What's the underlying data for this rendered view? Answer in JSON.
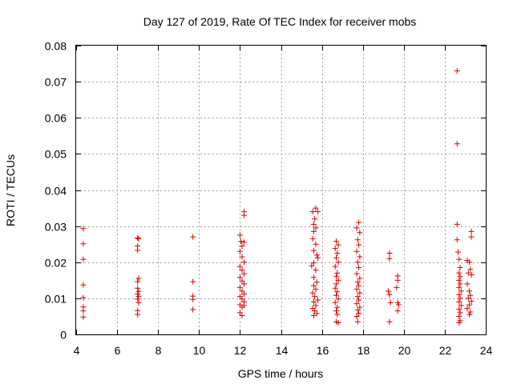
{
  "chart_data": {
    "type": "scatter",
    "title": "Day 127 of 2019, Rate Of TEC Index for receiver mobs",
    "xlabel": "GPS time / hours",
    "ylabel": "ROTI / TECUs",
    "xlim": [
      4,
      24
    ],
    "ylim": [
      0,
      0.08
    ],
    "grid": true,
    "marker": "+",
    "color": "#dd0000",
    "x_ticks": [
      "4",
      "6",
      "8",
      "10",
      "12",
      "14",
      "16",
      "18",
      "20",
      "22",
      "24"
    ],
    "y_ticks": [
      "0",
      "0.01",
      "0.02",
      "0.03",
      "0.04",
      "0.05",
      "0.06",
      "0.07",
      "0.08"
    ],
    "points": [
      [
        4.35,
        0.0293
      ],
      [
        4.35,
        0.0251
      ],
      [
        4.35,
        0.0208
      ],
      [
        4.35,
        0.0137
      ],
      [
        4.35,
        0.0102
      ],
      [
        4.35,
        0.0076
      ],
      [
        4.35,
        0.0065
      ],
      [
        4.35,
        0.0048
      ],
      [
        7.0,
        0.0267
      ],
      [
        7.05,
        0.0265
      ],
      [
        7.0,
        0.0245
      ],
      [
        7.0,
        0.0233
      ],
      [
        7.05,
        0.0155
      ],
      [
        7.0,
        0.0146
      ],
      [
        7.0,
        0.0128
      ],
      [
        7.05,
        0.0119
      ],
      [
        7.0,
        0.0112
      ],
      [
        7.05,
        0.0105
      ],
      [
        7.0,
        0.0098
      ],
      [
        7.05,
        0.0088
      ],
      [
        7.0,
        0.0066
      ],
      [
        7.0,
        0.0055
      ],
      [
        9.7,
        0.027
      ],
      [
        9.7,
        0.0146
      ],
      [
        9.7,
        0.0106
      ],
      [
        9.7,
        0.0097
      ],
      [
        9.7,
        0.0069
      ],
      [
        12.0,
        0.0275
      ],
      [
        12.05,
        0.0258
      ],
      [
        12.2,
        0.034
      ],
      [
        12.2,
        0.033
      ],
      [
        12.1,
        0.0245
      ],
      [
        12.2,
        0.0255
      ],
      [
        12.0,
        0.023
      ],
      [
        12.1,
        0.0215
      ],
      [
        12.2,
        0.02
      ],
      [
        12.0,
        0.0188
      ],
      [
        12.1,
        0.0178
      ],
      [
        12.2,
        0.0168
      ],
      [
        12.0,
        0.0158
      ],
      [
        12.1,
        0.0148
      ],
      [
        12.2,
        0.014
      ],
      [
        12.0,
        0.013
      ],
      [
        12.1,
        0.012
      ],
      [
        12.2,
        0.0112
      ],
      [
        12.0,
        0.0105
      ],
      [
        12.1,
        0.0098
      ],
      [
        12.2,
        0.009
      ],
      [
        12.0,
        0.0082
      ],
      [
        12.1,
        0.0075
      ],
      [
        12.0,
        0.006
      ],
      [
        12.1,
        0.0052
      ],
      [
        12.2,
        0.008
      ],
      [
        15.55,
        0.034
      ],
      [
        15.7,
        0.035
      ],
      [
        15.8,
        0.034
      ],
      [
        15.65,
        0.032
      ],
      [
        15.6,
        0.0305
      ],
      [
        15.7,
        0.0295
      ],
      [
        15.6,
        0.0285
      ],
      [
        15.55,
        0.0265
      ],
      [
        15.7,
        0.025
      ],
      [
        15.6,
        0.0232
      ],
      [
        15.75,
        0.022
      ],
      [
        15.8,
        0.0212
      ],
      [
        15.6,
        0.0198
      ],
      [
        15.5,
        0.019
      ],
      [
        15.7,
        0.0178
      ],
      [
        15.6,
        0.0158
      ],
      [
        15.75,
        0.0145
      ],
      [
        15.6,
        0.0135
      ],
      [
        15.7,
        0.0125
      ],
      [
        15.55,
        0.0115
      ],
      [
        15.65,
        0.0105
      ],
      [
        15.8,
        0.0095
      ],
      [
        15.6,
        0.009
      ],
      [
        15.7,
        0.008
      ],
      [
        15.55,
        0.0072
      ],
      [
        15.65,
        0.0065
      ],
      [
        15.75,
        0.0058
      ],
      [
        15.6,
        0.0052
      ],
      [
        16.7,
        0.0258
      ],
      [
        16.8,
        0.0248
      ],
      [
        16.65,
        0.0238
      ],
      [
        16.75,
        0.0225
      ],
      [
        16.7,
        0.0212
      ],
      [
        16.8,
        0.02
      ],
      [
        16.65,
        0.0188
      ],
      [
        16.75,
        0.017
      ],
      [
        16.7,
        0.016
      ],
      [
        16.8,
        0.015
      ],
      [
        16.7,
        0.014
      ],
      [
        16.65,
        0.0128
      ],
      [
        16.75,
        0.0118
      ],
      [
        16.7,
        0.0108
      ],
      [
        16.8,
        0.0098
      ],
      [
        16.65,
        0.0088
      ],
      [
        16.75,
        0.0075
      ],
      [
        16.7,
        0.0065
      ],
      [
        16.75,
        0.0055
      ],
      [
        16.7,
        0.0035
      ],
      [
        16.8,
        0.0032
      ],
      [
        17.8,
        0.031
      ],
      [
        17.7,
        0.0295
      ],
      [
        17.85,
        0.0282
      ],
      [
        17.75,
        0.0262
      ],
      [
        17.8,
        0.0248
      ],
      [
        17.7,
        0.023
      ],
      [
        17.85,
        0.0215
      ],
      [
        17.75,
        0.02
      ],
      [
        17.8,
        0.0185
      ],
      [
        17.7,
        0.0168
      ],
      [
        17.85,
        0.0155
      ],
      [
        17.75,
        0.0145
      ],
      [
        17.8,
        0.0135
      ],
      [
        17.7,
        0.0125
      ],
      [
        17.85,
        0.0115
      ],
      [
        17.75,
        0.0105
      ],
      [
        17.8,
        0.0095
      ],
      [
        17.7,
        0.0085
      ],
      [
        17.85,
        0.0075
      ],
      [
        17.75,
        0.0068
      ],
      [
        17.8,
        0.0058
      ],
      [
        17.7,
        0.005
      ],
      [
        17.75,
        0.0035
      ],
      [
        19.3,
        0.0225
      ],
      [
        19.3,
        0.021
      ],
      [
        19.25,
        0.012
      ],
      [
        19.3,
        0.011
      ],
      [
        19.35,
        0.0088
      ],
      [
        19.3,
        0.0035
      ],
      [
        19.7,
        0.0162
      ],
      [
        19.7,
        0.015
      ],
      [
        19.65,
        0.013
      ],
      [
        19.7,
        0.0088
      ],
      [
        19.75,
        0.0082
      ],
      [
        19.7,
        0.0065
      ],
      [
        22.6,
        0.073
      ],
      [
        22.6,
        0.0528
      ],
      [
        22.6,
        0.0305
      ],
      [
        22.6,
        0.0262
      ],
      [
        22.65,
        0.0228
      ],
      [
        22.7,
        0.0208
      ],
      [
        22.75,
        0.0185
      ],
      [
        22.7,
        0.017
      ],
      [
        22.75,
        0.016
      ],
      [
        22.7,
        0.015
      ],
      [
        22.75,
        0.014
      ],
      [
        22.7,
        0.013
      ],
      [
        22.8,
        0.012
      ],
      [
        22.7,
        0.011
      ],
      [
        22.75,
        0.01
      ],
      [
        22.7,
        0.009
      ],
      [
        22.8,
        0.008
      ],
      [
        22.7,
        0.007
      ],
      [
        22.75,
        0.006
      ],
      [
        22.7,
        0.005
      ],
      [
        22.75,
        0.0038
      ],
      [
        22.7,
        0.0032
      ],
      [
        23.1,
        0.0205
      ],
      [
        23.2,
        0.02
      ],
      [
        23.25,
        0.018
      ],
      [
        23.15,
        0.017
      ],
      [
        23.3,
        0.0165
      ],
      [
        23.1,
        0.014
      ],
      [
        23.2,
        0.012
      ],
      [
        23.25,
        0.0108
      ],
      [
        23.15,
        0.01
      ],
      [
        23.3,
        0.0092
      ],
      [
        23.2,
        0.0082
      ],
      [
        23.1,
        0.0072
      ],
      [
        23.25,
        0.0062
      ],
      [
        23.2,
        0.0055
      ],
      [
        23.3,
        0.0285
      ],
      [
        23.3,
        0.027
      ]
    ]
  }
}
